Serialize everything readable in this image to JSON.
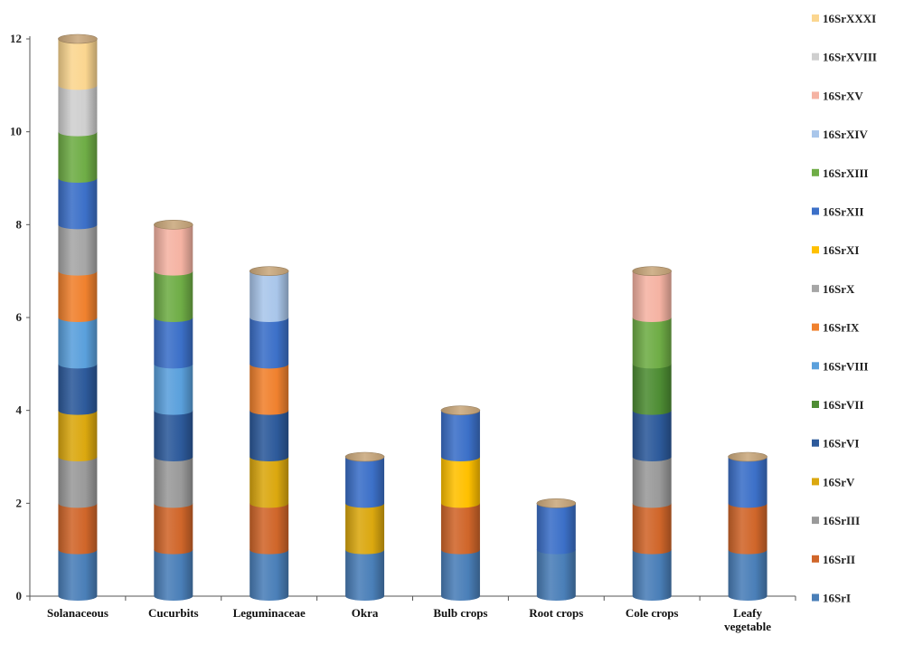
{
  "chart_data": {
    "type": "bar",
    "stacked": true,
    "style": "cylinder",
    "title": "",
    "xlabel": "",
    "ylabel": "",
    "ylim": [
      0,
      12
    ],
    "yticks": [
      0,
      2,
      4,
      6,
      8,
      10,
      12
    ],
    "grid": false,
    "legend_position": "right",
    "categories": [
      [
        "Solanaceous"
      ],
      [
        "Cucurbits"
      ],
      [
        "Leguminaceae"
      ],
      [
        "Okra"
      ],
      [
        "Bulb crops"
      ],
      [
        "Root crops"
      ],
      [
        "Cole crops"
      ],
      [
        "Leafy",
        "vegetable"
      ]
    ],
    "series": [
      {
        "name": "16SrI",
        "color": "#4a7fb8",
        "values": [
          1,
          1,
          1,
          1,
          1,
          1,
          1,
          1
        ]
      },
      {
        "name": "16SrII",
        "color": "#d0662a",
        "values": [
          1,
          1,
          1,
          0,
          1,
          0,
          1,
          1
        ]
      },
      {
        "name": "16SrIII",
        "color": "#9a9a9a",
        "values": [
          1,
          1,
          0,
          0,
          0,
          0,
          1,
          0
        ]
      },
      {
        "name": "16SrV",
        "color": "#dba80f",
        "values": [
          1,
          0,
          1,
          1,
          0,
          0,
          0,
          0
        ]
      },
      {
        "name": "16SrVI",
        "color": "#2d5a9b",
        "values": [
          1,
          1,
          1,
          0,
          0,
          0,
          1,
          0
        ]
      },
      {
        "name": "16SrVII",
        "color": "#4e8d34",
        "values": [
          0,
          0,
          0,
          0,
          0,
          0,
          1,
          0
        ]
      },
      {
        "name": "16SrVIII",
        "color": "#5aa0dc",
        "values": [
          1,
          1,
          0,
          0,
          0,
          0,
          0,
          0
        ]
      },
      {
        "name": "16SrIX",
        "color": "#f0812e",
        "values": [
          1,
          0,
          1,
          0,
          0,
          0,
          0,
          0
        ]
      },
      {
        "name": "16SrX",
        "color": "#a6a6a6",
        "values": [
          1,
          0,
          0,
          0,
          0,
          0,
          0,
          0
        ]
      },
      {
        "name": "16SrXI",
        "color": "#ffc000",
        "values": [
          0,
          0,
          0,
          0,
          1,
          0,
          0,
          0
        ]
      },
      {
        "name": "16SrXII",
        "color": "#3c70c8",
        "values": [
          1,
          1,
          1,
          1,
          1,
          1,
          0,
          1
        ]
      },
      {
        "name": "16SrXIII",
        "color": "#6fad46",
        "values": [
          1,
          1,
          0,
          0,
          0,
          0,
          1,
          0
        ]
      },
      {
        "name": "16SrXIV",
        "color": "#a9c6ea",
        "values": [
          0,
          0,
          1,
          0,
          0,
          0,
          0,
          0
        ]
      },
      {
        "name": "16SrXV",
        "color": "#f5b3a3",
        "values": [
          0,
          1,
          0,
          0,
          0,
          0,
          1,
          0
        ]
      },
      {
        "name": "16SrXVIII",
        "color": "#cfcfcf",
        "values": [
          1,
          0,
          0,
          0,
          0,
          0,
          0,
          0
        ]
      },
      {
        "name": "16SrXXXI",
        "color": "#fbd690",
        "values": [
          1,
          0,
          0,
          0,
          0,
          0,
          0,
          0
        ]
      }
    ],
    "cap_color": "#c8a679"
  }
}
